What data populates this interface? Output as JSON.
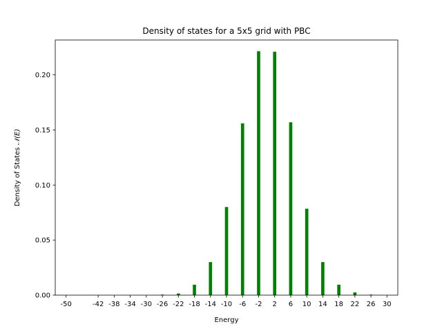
{
  "chart_data": {
    "type": "bar",
    "title": "Density of states for a 5x5 grid with PBC",
    "xlabel": "Energy",
    "ylabel": "Density of States  ℕ(E)",
    "ylabel_plain": "Density of States ",
    "ylabel_symbol": "𝒩(E)",
    "bar_color": "#008000",
    "grid": false,
    "xlim": [
      -52.7,
      32.7
    ],
    "ylim": [
      0,
      0.2317
    ],
    "xticks": [
      -50,
      -42,
      -38,
      -34,
      -30,
      -26,
      -22,
      -18,
      -14,
      -10,
      -6,
      -2,
      2,
      6,
      10,
      14,
      18,
      22,
      26,
      30
    ],
    "yticks": [
      0.0,
      0.05,
      0.1,
      0.15,
      0.2
    ],
    "ytick_labels": [
      "0.00",
      "0.05",
      "0.10",
      "0.15",
      "0.20"
    ],
    "bar_width": 0.8,
    "x": [
      -50,
      -46,
      -42,
      -38,
      -34,
      -30,
      -26,
      -22,
      -18,
      -14,
      -10,
      -6,
      -2,
      2,
      6,
      10,
      14,
      18,
      22,
      26,
      30
    ],
    "values": [
      0,
      0,
      0,
      0,
      0,
      0,
      0.0005,
      0.0015,
      0.0095,
      0.03,
      0.08,
      0.156,
      0.2215,
      0.221,
      0.157,
      0.0785,
      0.03,
      0.0095,
      0.0025,
      0.0005,
      0
    ]
  }
}
